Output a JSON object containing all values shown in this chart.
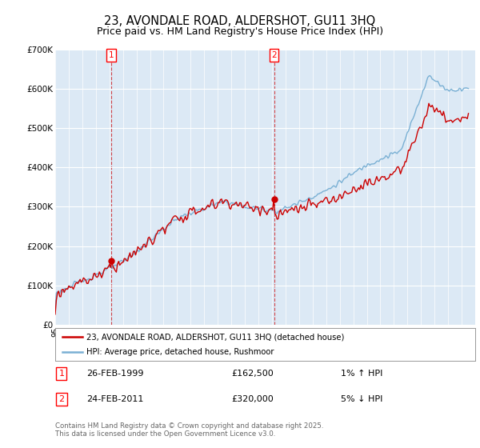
{
  "title": "23, AVONDALE ROAD, ALDERSHOT, GU11 3HQ",
  "subtitle": "Price paid vs. HM Land Registry's House Price Index (HPI)",
  "ylim": [
    0,
    700000
  ],
  "yticks": [
    0,
    100000,
    200000,
    300000,
    400000,
    500000,
    600000,
    700000
  ],
  "ytick_labels": [
    "£0",
    "£100K",
    "£200K",
    "£300K",
    "£400K",
    "£500K",
    "£600K",
    "£700K"
  ],
  "line_red_color": "#cc0000",
  "line_blue_color": "#7ab0d4",
  "plot_bg": "#dce9f5",
  "grid_color": "#ffffff",
  "legend1": "23, AVONDALE ROAD, ALDERSHOT, GU11 3HQ (detached house)",
  "legend2": "HPI: Average price, detached house, Rushmoor",
  "sale1_year": 1999.15,
  "sale1_price": 162500,
  "sale2_year": 2011.15,
  "sale2_price": 320000,
  "sale1_date": "26-FEB-1999",
  "sale1_amount": "£162,500",
  "sale1_pct": "1% ↑ HPI",
  "sale2_date": "24-FEB-2011",
  "sale2_amount": "£320,000",
  "sale2_pct": "5% ↓ HPI",
  "footnote1": "Contains HM Land Registry data © Crown copyright and database right 2025.",
  "footnote2": "This data is licensed under the Open Government Licence v3.0.",
  "title_fontsize": 10.5,
  "subtitle_fontsize": 9
}
